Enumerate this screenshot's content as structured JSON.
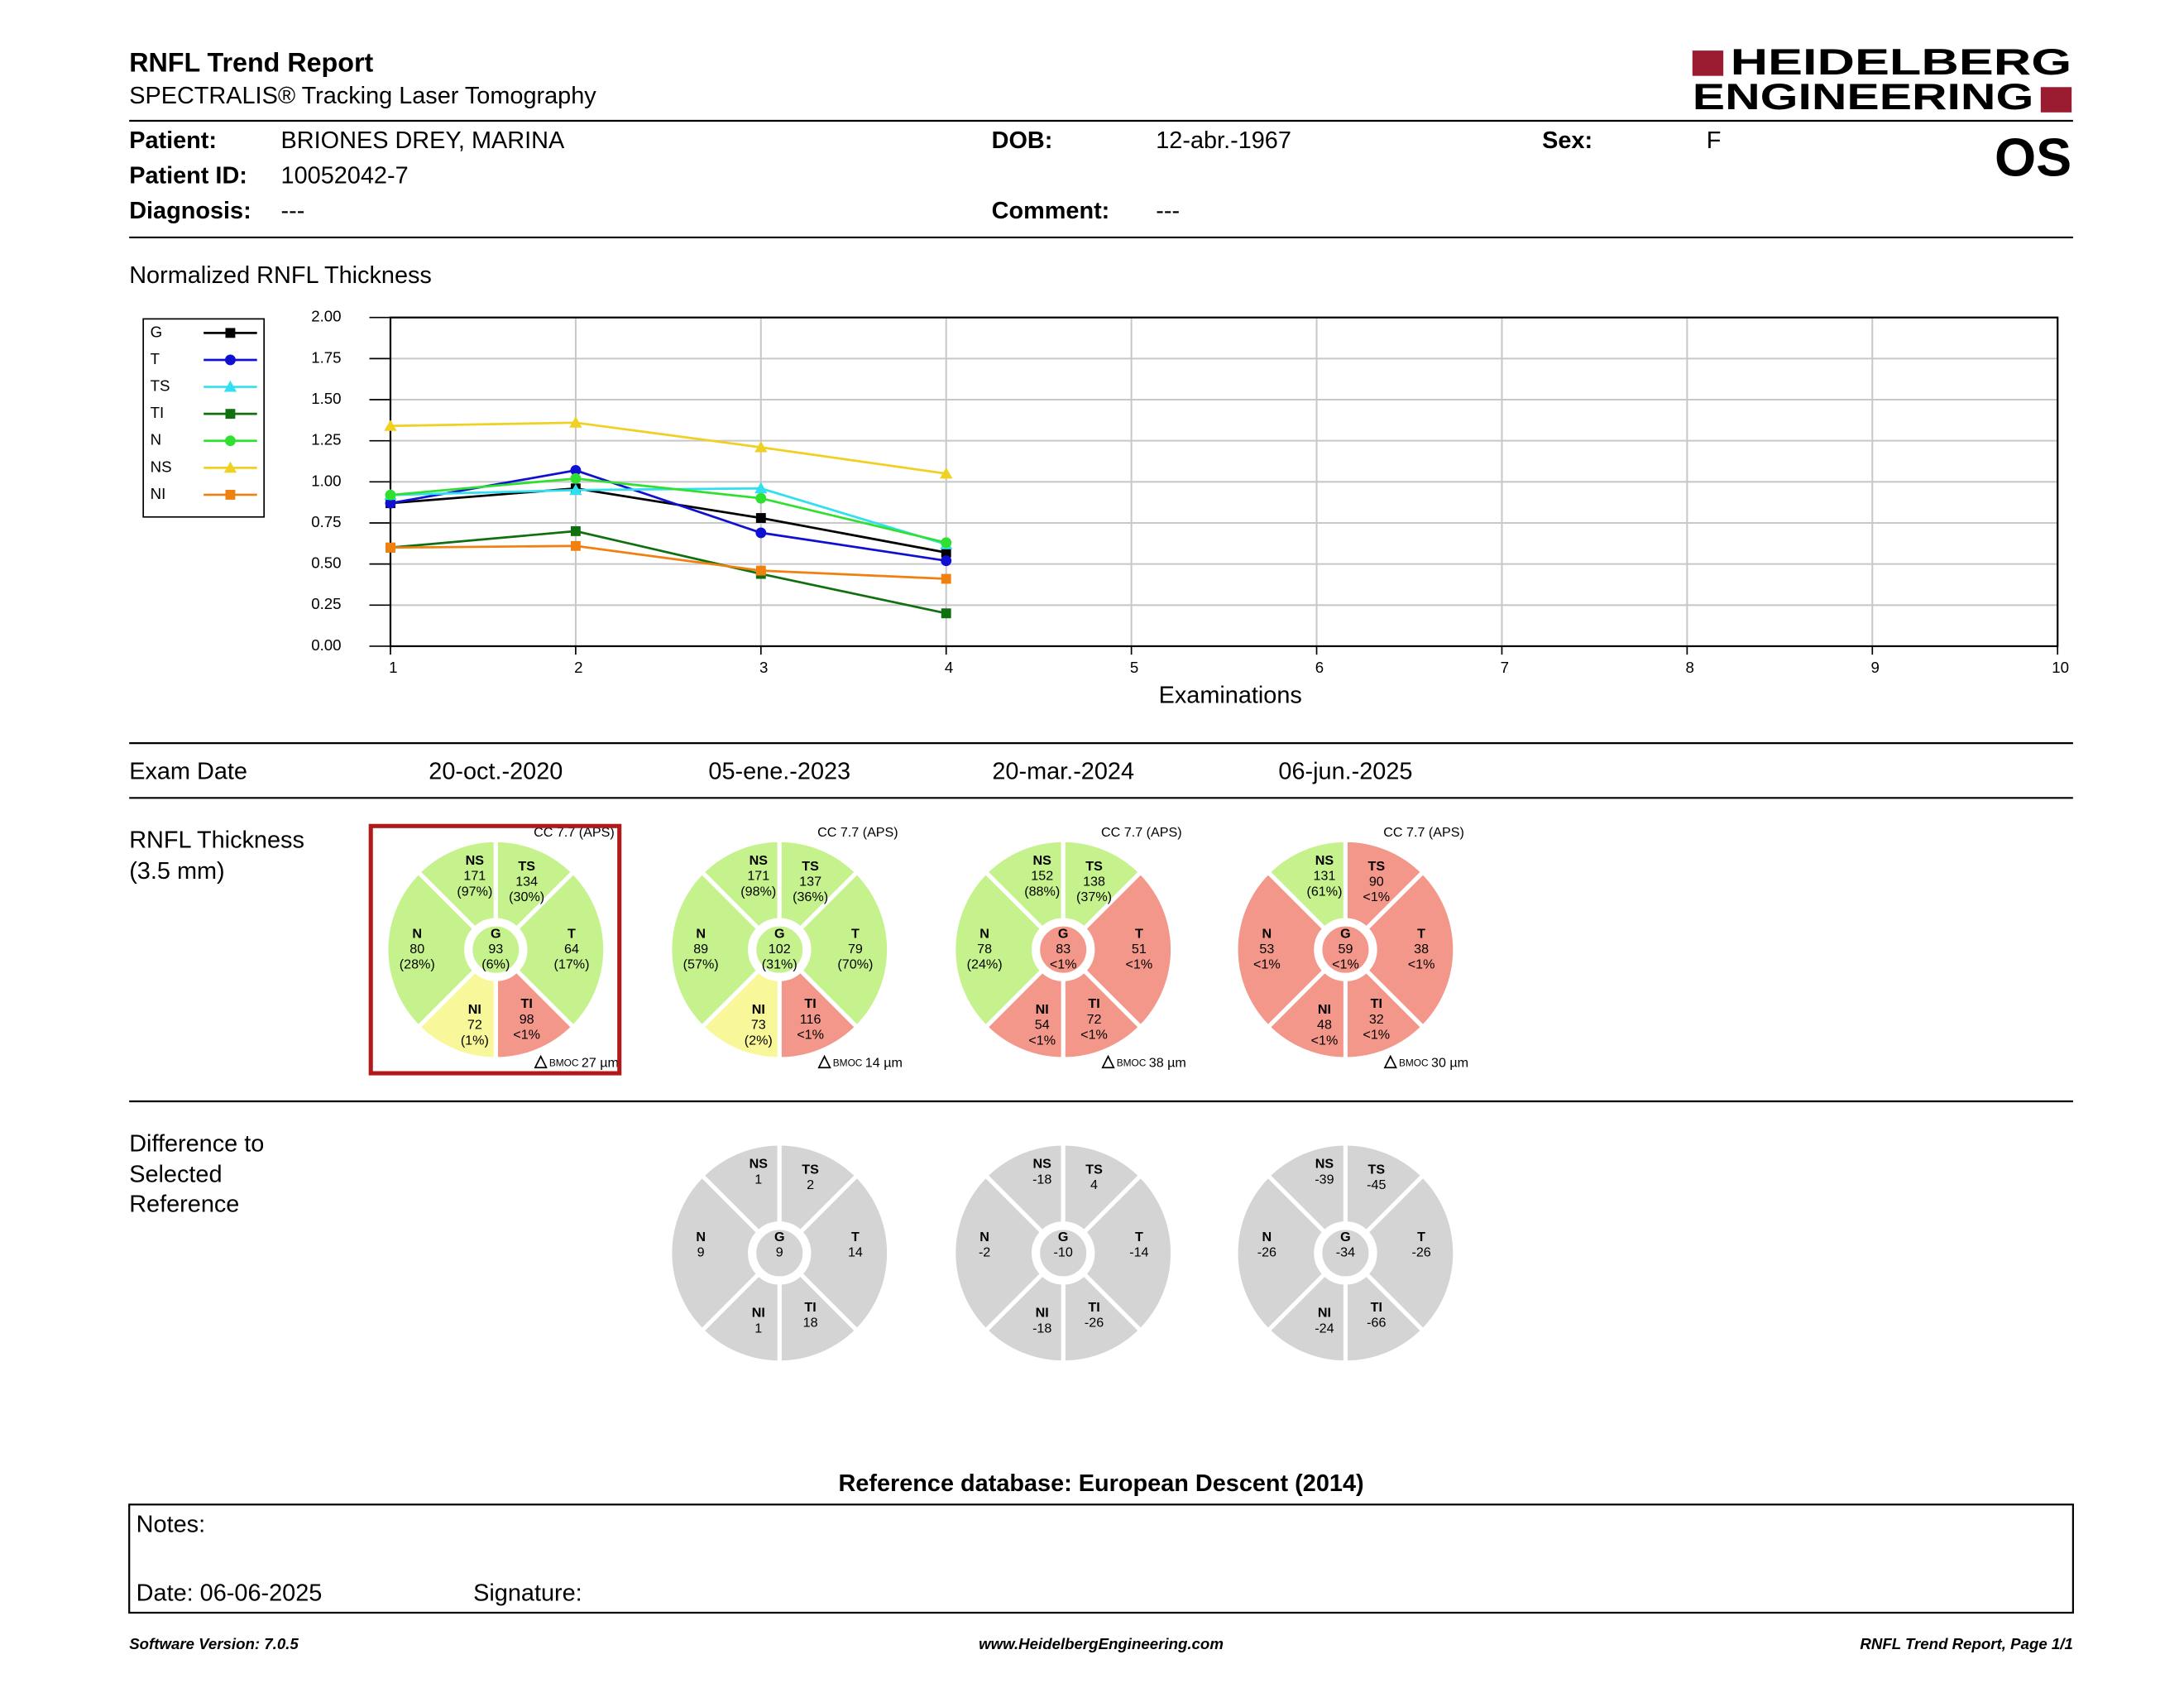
{
  "header": {
    "title": "RNFL Trend Report",
    "subtitle": "SPECTRALIS® Tracking Laser Tomography",
    "logo": [
      "HEIDELBERG",
      "ENGINEERING"
    ],
    "eye": "OS"
  },
  "patient": {
    "name_label": "Patient:",
    "name": "BRIONES DREY, MARINA",
    "dob_label": "DOB:",
    "dob": "12-abr.-1967",
    "sex_label": "Sex:",
    "sex": "F",
    "id_label": "Patient ID:",
    "id": "10052042-7",
    "diagnosis_label": "Diagnosis:",
    "diagnosis": "---",
    "comment_label": "Comment:",
    "comment": "---"
  },
  "chart": {
    "type": "line",
    "title": "Normalized RNFL Thickness",
    "xlabel": "Examinations",
    "x": [
      1,
      2,
      3,
      4
    ],
    "xlim": [
      1,
      10
    ],
    "xticks": [
      1,
      2,
      3,
      4,
      5,
      6,
      7,
      8,
      9,
      10
    ],
    "ylim": [
      0,
      2
    ],
    "yticks": [
      {
        "value": 0,
        "label": "0.00"
      },
      {
        "value": 0.25,
        "label": "0.25"
      },
      {
        "value": 0.5,
        "label": "0.50"
      },
      {
        "value": 0.75,
        "label": "0.75"
      },
      {
        "value": 1,
        "label": "1.00"
      },
      {
        "value": 1.25,
        "label": "1.25"
      },
      {
        "value": 1.5,
        "label": "1.50"
      },
      {
        "value": 1.75,
        "label": "1.75"
      },
      {
        "value": 2,
        "label": "2.00"
      }
    ],
    "grid": true,
    "series": [
      {
        "name": "G",
        "color": "#000000",
        "marker": "square",
        "values": [
          0.87,
          0.96,
          0.78,
          0.57
        ]
      },
      {
        "name": "T",
        "color": "#1010d0",
        "marker": "circle",
        "values": [
          0.87,
          1.07,
          0.69,
          0.52
        ]
      },
      {
        "name": "TS",
        "color": "#30e0f0",
        "marker": "triangle",
        "values": [
          0.92,
          0.95,
          0.96,
          0.62
        ]
      },
      {
        "name": "TI",
        "color": "#107010",
        "marker": "square",
        "values": [
          0.6,
          0.7,
          0.44,
          0.2
        ]
      },
      {
        "name": "N",
        "color": "#30e030",
        "marker": "circle",
        "values": [
          0.92,
          1.02,
          0.9,
          0.63
        ]
      },
      {
        "name": "NS",
        "color": "#f0d020",
        "marker": "triangle",
        "values": [
          1.34,
          1.36,
          1.21,
          1.05
        ]
      },
      {
        "name": "NI",
        "color": "#f08010",
        "marker": "square",
        "values": [
          0.6,
          0.61,
          0.46,
          0.41
        ]
      }
    ]
  },
  "exams": {
    "label": "Exam Date",
    "dates": [
      "20-oct.-2020",
      "05-ene.-2023",
      "20-mar.-2024",
      "06-jun.-2025"
    ]
  },
  "thickness": {
    "label": [
      "RNFL Thickness",
      "(3.5 mm)"
    ],
    "bmoc_label": "BMOC",
    "circles": [
      {
        "selected": true,
        "cc": "CC 7.7 (APS)",
        "bmo": "27 µm",
        "sectors": [
          {
            "name": "NS",
            "value": "171",
            "pct": "(97%)",
            "color": "#c6f28e"
          },
          {
            "name": "TS",
            "value": "134",
            "pct": "(30%)",
            "color": "#c6f28e"
          },
          {
            "name": "T",
            "value": "64",
            "pct": "(17%)",
            "color": "#c6f28e"
          },
          {
            "name": "TI",
            "value": "98",
            "pct": "<1%",
            "color": "#f4978b"
          },
          {
            "name": "NI",
            "value": "72",
            "pct": "(1%)",
            "color": "#f8f89a"
          },
          {
            "name": "N",
            "value": "80",
            "pct": "(28%)",
            "color": "#c6f28e"
          },
          {
            "name": "G",
            "value": "93",
            "pct": "(6%)",
            "color": "#c6f28e"
          }
        ]
      },
      {
        "selected": false,
        "cc": "CC 7.7 (APS)",
        "bmo": "14 µm",
        "sectors": [
          {
            "name": "NS",
            "value": "171",
            "pct": "(98%)",
            "color": "#c6f28e"
          },
          {
            "name": "TS",
            "value": "137",
            "pct": "(36%)",
            "color": "#c6f28e"
          },
          {
            "name": "T",
            "value": "79",
            "pct": "(70%)",
            "color": "#c6f28e"
          },
          {
            "name": "TI",
            "value": "116",
            "pct": "<1%",
            "color": "#f4978b"
          },
          {
            "name": "NI",
            "value": "73",
            "pct": "(2%)",
            "color": "#f8f89a"
          },
          {
            "name": "N",
            "value": "89",
            "pct": "(57%)",
            "color": "#c6f28e"
          },
          {
            "name": "G",
            "value": "102",
            "pct": "(31%)",
            "color": "#c6f28e"
          }
        ]
      },
      {
        "selected": false,
        "cc": "CC 7.7 (APS)",
        "bmo": "38 µm",
        "sectors": [
          {
            "name": "NS",
            "value": "152",
            "pct": "(88%)",
            "color": "#c6f28e"
          },
          {
            "name": "TS",
            "value": "138",
            "pct": "(37%)",
            "color": "#c6f28e"
          },
          {
            "name": "T",
            "value": "51",
            "pct": "<1%",
            "color": "#f4978b"
          },
          {
            "name": "TI",
            "value": "72",
            "pct": "<1%",
            "color": "#f4978b"
          },
          {
            "name": "NI",
            "value": "54",
            "pct": "<1%",
            "color": "#f4978b"
          },
          {
            "name": "N",
            "value": "78",
            "pct": "(24%)",
            "color": "#c6f28e"
          },
          {
            "name": "G",
            "value": "83",
            "pct": "<1%",
            "color": "#f4978b"
          }
        ]
      },
      {
        "selected": false,
        "cc": "CC 7.7 (APS)",
        "bmo": "30 µm",
        "sectors": [
          {
            "name": "NS",
            "value": "131",
            "pct": "(61%)",
            "color": "#c6f28e"
          },
          {
            "name": "TS",
            "value": "90",
            "pct": "<1%",
            "color": "#f4978b"
          },
          {
            "name": "T",
            "value": "38",
            "pct": "<1%",
            "color": "#f4978b"
          },
          {
            "name": "TI",
            "value": "32",
            "pct": "<1%",
            "color": "#f4978b"
          },
          {
            "name": "NI",
            "value": "48",
            "pct": "<1%",
            "color": "#f4978b"
          },
          {
            "name": "N",
            "value": "53",
            "pct": "<1%",
            "color": "#f4978b"
          },
          {
            "name": "G",
            "value": "59",
            "pct": "<1%",
            "color": "#f4978b"
          }
        ]
      }
    ]
  },
  "difference": {
    "label": [
      "Difference to",
      "Selected",
      "Reference"
    ],
    "color": "#d4d4d4",
    "circles": [
      {
        "sectors": [
          {
            "name": "NS",
            "value": "1"
          },
          {
            "name": "TS",
            "value": "2"
          },
          {
            "name": "T",
            "value": "14"
          },
          {
            "name": "TI",
            "value": "18"
          },
          {
            "name": "NI",
            "value": "1"
          },
          {
            "name": "N",
            "value": "9"
          },
          {
            "name": "G",
            "value": "9"
          }
        ]
      },
      {
        "sectors": [
          {
            "name": "NS",
            "value": "-18"
          },
          {
            "name": "TS",
            "value": "4"
          },
          {
            "name": "T",
            "value": "-14"
          },
          {
            "name": "TI",
            "value": "-26"
          },
          {
            "name": "NI",
            "value": "-18"
          },
          {
            "name": "N",
            "value": "-2"
          },
          {
            "name": "G",
            "value": "-10"
          }
        ]
      },
      {
        "sectors": [
          {
            "name": "NS",
            "value": "-39"
          },
          {
            "name": "TS",
            "value": "-45"
          },
          {
            "name": "T",
            "value": "-26"
          },
          {
            "name": "TI",
            "value": "-66"
          },
          {
            "name": "NI",
            "value": "-24"
          },
          {
            "name": "N",
            "value": "-26"
          },
          {
            "name": "G",
            "value": "-34"
          }
        ]
      }
    ]
  },
  "reference_database": "Reference database: European Descent (2014)",
  "notes": {
    "notes_label": "Notes:",
    "date": "Date: 06-06-2025",
    "signature": "Signature:"
  },
  "footer": {
    "left": "Software Version: 7.0.5",
    "center": "www.HeidelbergEngineering.com",
    "right": "RNFL Trend Report, Page 1/1"
  }
}
